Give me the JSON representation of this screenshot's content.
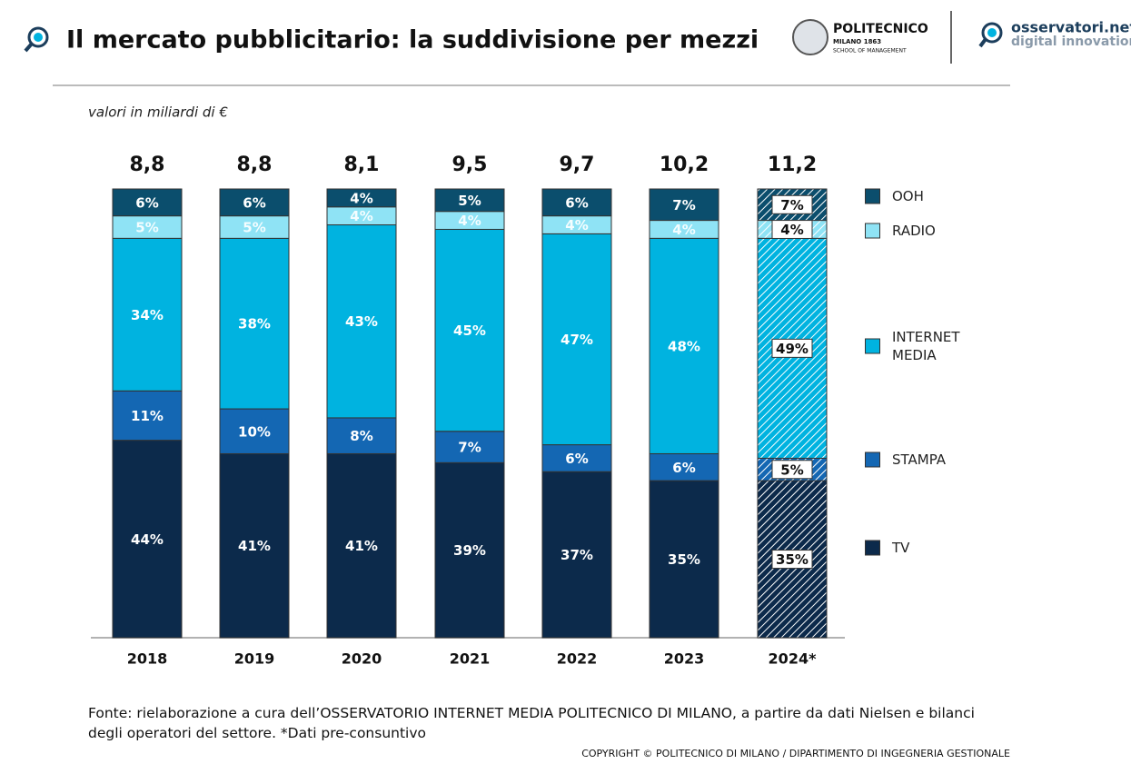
{
  "header": {
    "title": "Il mercato pubblicitario: la suddivisione per mezzi",
    "logo_left": {
      "name": "POLITECNICO",
      "line2": "MILANO 1863",
      "line3": "SCHOOL OF MANAGEMENT"
    },
    "logo_right": {
      "name": "osservatori.net",
      "line2": "digital innovation"
    }
  },
  "chart_data": {
    "type": "stacked-bar",
    "subtitle": "valori in miliardi di €",
    "categories": [
      "2018",
      "2019",
      "2020",
      "2021",
      "2022",
      "2023",
      "2024*"
    ],
    "hatched": [
      false,
      false,
      false,
      false,
      false,
      false,
      true
    ],
    "totals": {
      "values": [
        8.8,
        8.8,
        8.1,
        9.5,
        9.7,
        10.2,
        11.2
      ],
      "value_labels": [
        "8,8",
        "8,8",
        "8,1",
        "9,5",
        "9,7",
        "10,2",
        "11,2"
      ]
    },
    "series": [
      {
        "name": "TV",
        "color": "#0c2a4b",
        "values": [
          44,
          41,
          41,
          39,
          37,
          35,
          35
        ],
        "value_labels": [
          "44%",
          "41%",
          "41%",
          "39%",
          "37%",
          "35%",
          "35%"
        ]
      },
      {
        "name": "STAMPA",
        "color": "#1467b3",
        "values": [
          11,
          10,
          8,
          7,
          6,
          6,
          5
        ],
        "value_labels": [
          "11%",
          "10%",
          "8%",
          "7%",
          "6%",
          "6%",
          "5%"
        ]
      },
      {
        "name": "INTERNET MEDIA",
        "color": "#00b3e0",
        "values": [
          34,
          38,
          43,
          45,
          47,
          48,
          49
        ],
        "value_labels": [
          "34%",
          "38%",
          "43%",
          "45%",
          "47%",
          "48%",
          "49%"
        ]
      },
      {
        "name": "RADIO",
        "color": "#8fe3f5",
        "values": [
          5,
          5,
          4,
          4,
          4,
          4,
          4
        ],
        "value_labels": [
          "5%",
          "5%",
          "4%",
          "4%",
          "4%",
          "4%",
          "4%"
        ]
      },
      {
        "name": "OOH",
        "color": "#0b4e6d",
        "values": [
          6,
          6,
          4,
          5,
          6,
          7,
          7
        ],
        "value_labels": [
          "6%",
          "6%",
          "4%",
          "5%",
          "6%",
          "7%",
          "7%"
        ]
      }
    ]
  },
  "footer": {
    "source": "Fonte: rielaborazione a cura dell’OSSERVATORIO INTERNET MEDIA POLITECNICO DI MILANO, a partire da dati Nielsen e bilanci degli operatori del settore. *Dati pre-consuntivo",
    "copyright": "COPYRIGHT © POLITECNICO DI MILANO / DIPARTIMENTO DI INGEGNERIA GESTIONALE"
  }
}
